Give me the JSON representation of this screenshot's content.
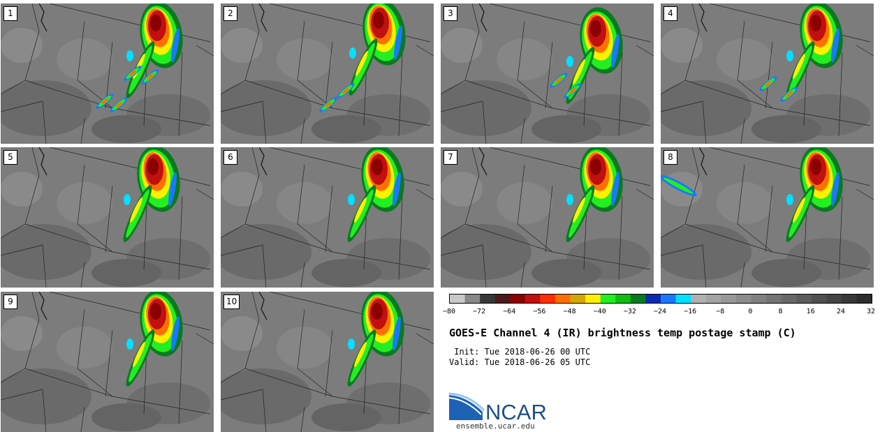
{
  "panels": [
    "1",
    "2",
    "3",
    "4",
    "5",
    "6",
    "7",
    "8",
    "9",
    "10"
  ],
  "colorbar": {
    "colors": [
      "#c8c8c8",
      "#888888",
      "#383838",
      "#4a1a1a",
      "#8b0000",
      "#c01010",
      "#ff3000",
      "#ff7000",
      "#d4a800",
      "#ffef00",
      "#22ee22",
      "#11bb11",
      "#0a7a20",
      "#0a2ab0",
      "#1a78ff",
      "#00e0ff",
      "#b0b0b0",
      "#a4a4a4",
      "#989898",
      "#8c8c8c",
      "#808080",
      "#747474",
      "#686868",
      "#5c5c5c",
      "#505050",
      "#444444",
      "#383838",
      "#2c2c2c"
    ],
    "ticks": [
      "−80",
      "−72",
      "−64",
      "−56",
      "−48",
      "−40",
      "−32",
      "−24",
      "−16",
      "−8",
      "0",
      "8",
      "16",
      "24",
      "32"
    ]
  },
  "title": "GOES-E Channel 4 (IR) brightness temp postage stamp (C)",
  "init_line": " Init: Tue 2018-06-26 00 UTC",
  "valid_line": "Valid: Tue 2018-06-26 05 UTC",
  "logo_text": "NCAR",
  "site": "ensemble.ucar.edu"
}
